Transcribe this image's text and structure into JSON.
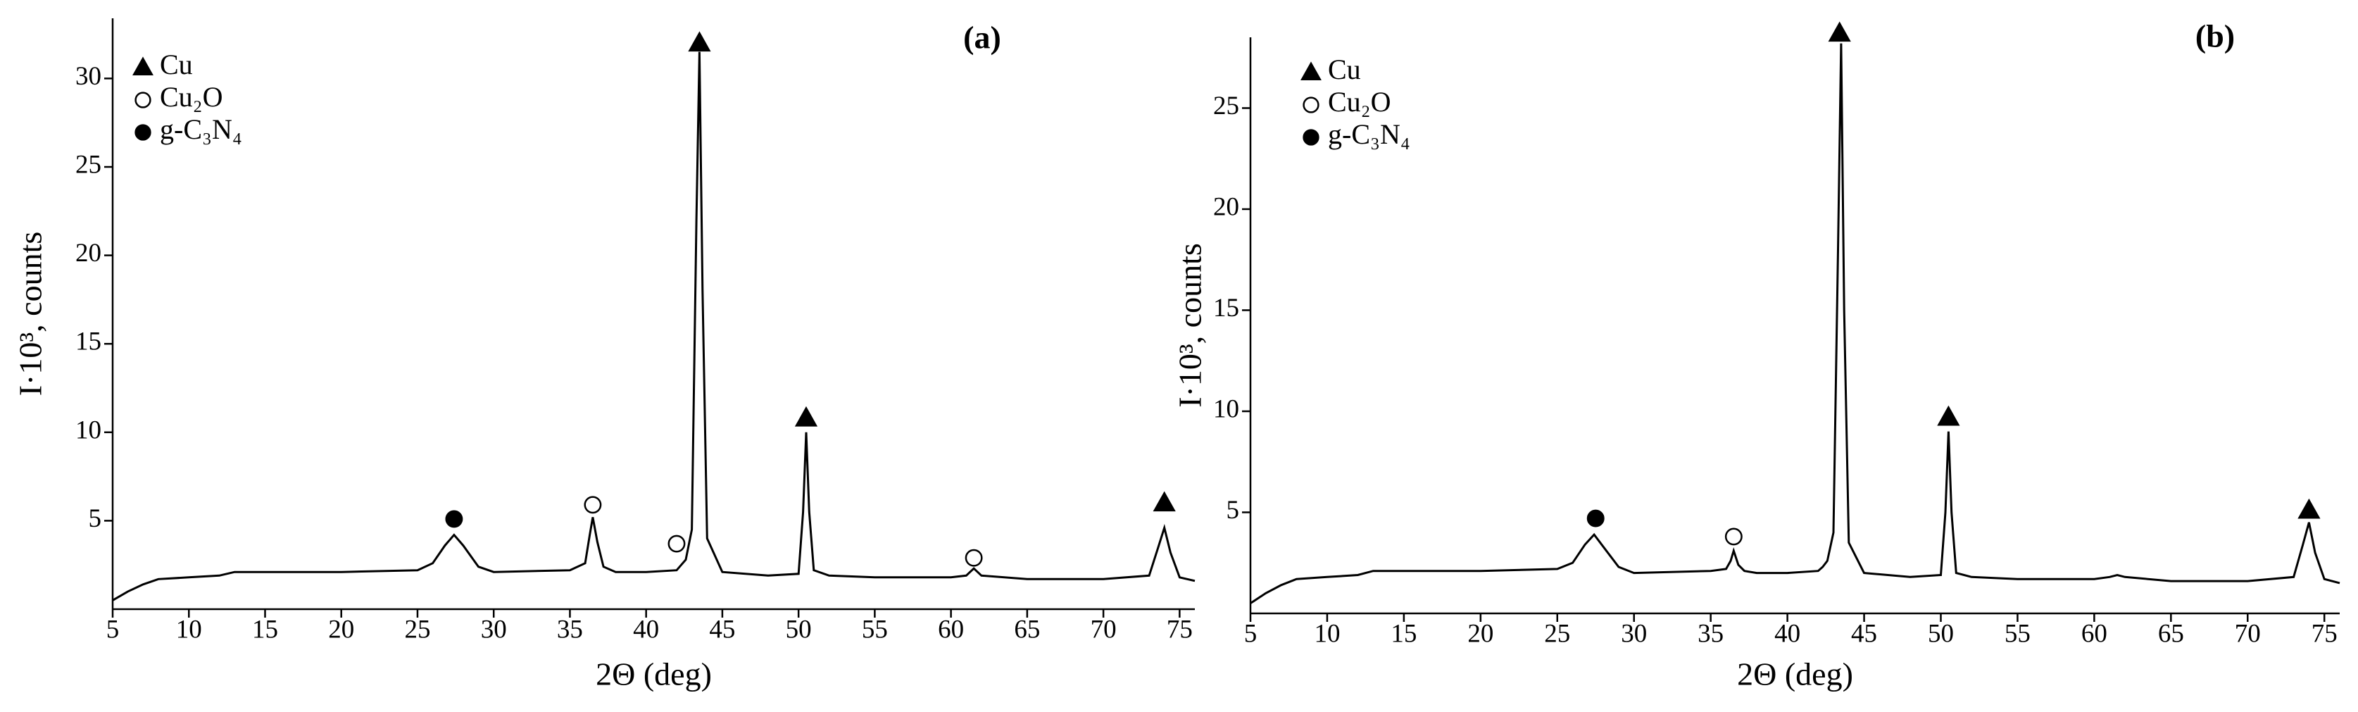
{
  "chart_data": [
    {
      "type": "line",
      "title": "(a)",
      "x_label": "2Θ (deg)",
      "y_label": "I·10³, counts",
      "color": "#000000",
      "x": [
        5,
        6,
        7,
        8,
        10,
        12,
        13,
        15,
        20,
        25,
        26,
        26.8,
        27.4,
        28,
        29,
        30,
        35,
        36,
        36.3,
        36.5,
        36.8,
        37.2,
        38,
        40,
        42,
        42.3,
        42.6,
        43,
        43.3,
        43.5,
        43.7,
        44,
        45,
        48,
        50,
        50.3,
        50.5,
        50.7,
        51,
        52,
        55,
        60,
        61,
        61.5,
        62,
        65,
        70,
        73,
        73.6,
        74,
        74.4,
        75,
        76
      ],
      "values": [
        0.5,
        1.0,
        1.4,
        1.7,
        1.8,
        1.9,
        2.1,
        2.1,
        2.1,
        2.2,
        2.6,
        3.6,
        4.2,
        3.6,
        2.4,
        2.1,
        2.2,
        2.6,
        4.2,
        5.2,
        3.8,
        2.4,
        2.1,
        2.1,
        2.2,
        2.5,
        2.8,
        4.5,
        22,
        31.5,
        18,
        4.0,
        2.1,
        1.9,
        2.0,
        5.5,
        10.0,
        5.5,
        2.2,
        1.9,
        1.8,
        1.8,
        1.9,
        2.3,
        1.9,
        1.7,
        1.7,
        1.9,
        3.5,
        4.6,
        3.2,
        1.8,
        1.6
      ],
      "xlim": [
        5,
        76
      ],
      "xticks": [
        5,
        10,
        15,
        20,
        25,
        30,
        35,
        40,
        45,
        50,
        55,
        60,
        65,
        70,
        75
      ],
      "ylim": [
        0,
        33.4
      ],
      "yticks": [
        5,
        10,
        15,
        20,
        25,
        30
      ],
      "markers": [
        {
          "name": "Cu",
          "symbol": "triangle",
          "x": [
            43.5,
            50.5,
            74
          ],
          "y": [
            32.0,
            10.8,
            6.0
          ]
        },
        {
          "name": "Cu₂O",
          "symbol": "open-circle",
          "x": [
            36.5,
            42,
            61.5
          ],
          "y": [
            5.9,
            3.7,
            2.9
          ]
        },
        {
          "name": "g-C₃N₄",
          "symbol": "filled-circle",
          "x": [
            27.4
          ],
          "y": [
            5.1
          ]
        }
      ]
    },
    {
      "type": "line",
      "title": "(b)",
      "x_label": "2Θ (deg)",
      "y_label": "I·10³, counts",
      "color": "#000000",
      "x": [
        5,
        6,
        7,
        8,
        10,
        12,
        13,
        15,
        20,
        25,
        26,
        26.8,
        27.4,
        28,
        29,
        30,
        35,
        36,
        36.3,
        36.5,
        36.8,
        37.2,
        38,
        40,
        42,
        42.3,
        42.6,
        43,
        43.3,
        43.5,
        43.7,
        44,
        45,
        48,
        50,
        50.3,
        50.5,
        50.7,
        51,
        52,
        55,
        60,
        61,
        61.5,
        62,
        65,
        70,
        73,
        73.6,
        74,
        74.4,
        75,
        76
      ],
      "values": [
        0.5,
        1.0,
        1.4,
        1.7,
        1.8,
        1.9,
        2.1,
        2.1,
        2.1,
        2.2,
        2.5,
        3.4,
        3.9,
        3.3,
        2.3,
        2.0,
        2.1,
        2.2,
        2.6,
        3.1,
        2.4,
        2.1,
        2.0,
        2.0,
        2.1,
        2.3,
        2.6,
        4.0,
        18,
        28.2,
        15,
        3.5,
        2.0,
        1.8,
        1.9,
        5.0,
        9.0,
        5.0,
        2.0,
        1.8,
        1.7,
        1.7,
        1.8,
        1.9,
        1.8,
        1.6,
        1.6,
        1.8,
        3.4,
        4.5,
        3.0,
        1.7,
        1.5
      ],
      "xlim": [
        5,
        76
      ],
      "xticks": [
        5,
        10,
        15,
        20,
        25,
        30,
        35,
        40,
        45,
        50,
        55,
        60,
        65,
        70,
        75
      ],
      "ylim": [
        0,
        28.5
      ],
      "yticks": [
        5,
        10,
        15,
        20,
        25
      ],
      "markers": [
        {
          "name": "Cu",
          "symbol": "triangle",
          "x": [
            43.4,
            50.5,
            74
          ],
          "y": [
            28.7,
            9.7,
            5.1
          ]
        },
        {
          "name": "Cu₂O",
          "symbol": "open-circle",
          "x": [
            36.5
          ],
          "y": [
            3.8
          ]
        },
        {
          "name": "g-C₃N₄",
          "symbol": "filled-circle",
          "x": [
            27.5
          ],
          "y": [
            4.7
          ]
        }
      ]
    }
  ]
}
